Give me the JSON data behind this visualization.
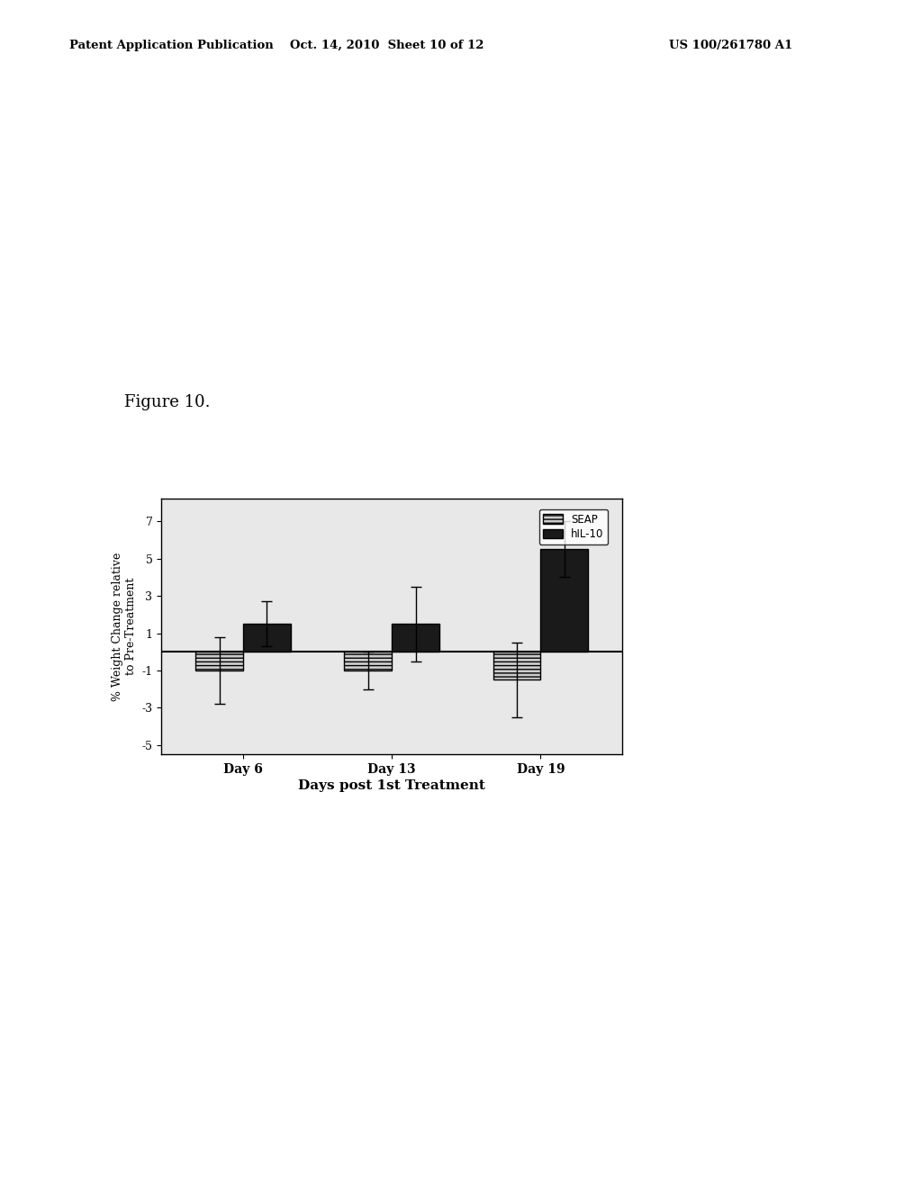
{
  "groups": [
    "Day 6",
    "Day 13",
    "Day 19"
  ],
  "seap_values": [
    -1.0,
    -1.0,
    -1.5
  ],
  "hil10_values": [
    1.5,
    1.5,
    5.5
  ],
  "seap_errors": [
    1.8,
    1.0,
    2.0
  ],
  "hil10_errors": [
    1.2,
    2.0,
    1.5
  ],
  "ylabel": "% Weight Change relative\nto Pre-Treatment",
  "xlabel": "Days post 1st Treatment",
  "ylim": [
    -5.5,
    8.2
  ],
  "yticks": [
    -5,
    -3,
    -1,
    1,
    3,
    5,
    7
  ],
  "bar_width": 0.32,
  "seap_color": "#ffffff",
  "hil10_color": "#1a1a1a",
  "legend_labels": [
    "SEAP",
    "hIL-10"
  ],
  "figure_caption": "Figure 10.",
  "header_left": "Patent Application Publication",
  "header_center": "Oct. 14, 2010  Sheet 10 of 12",
  "header_right": "US 100/261780 A1",
  "background_color": "#ffffff"
}
